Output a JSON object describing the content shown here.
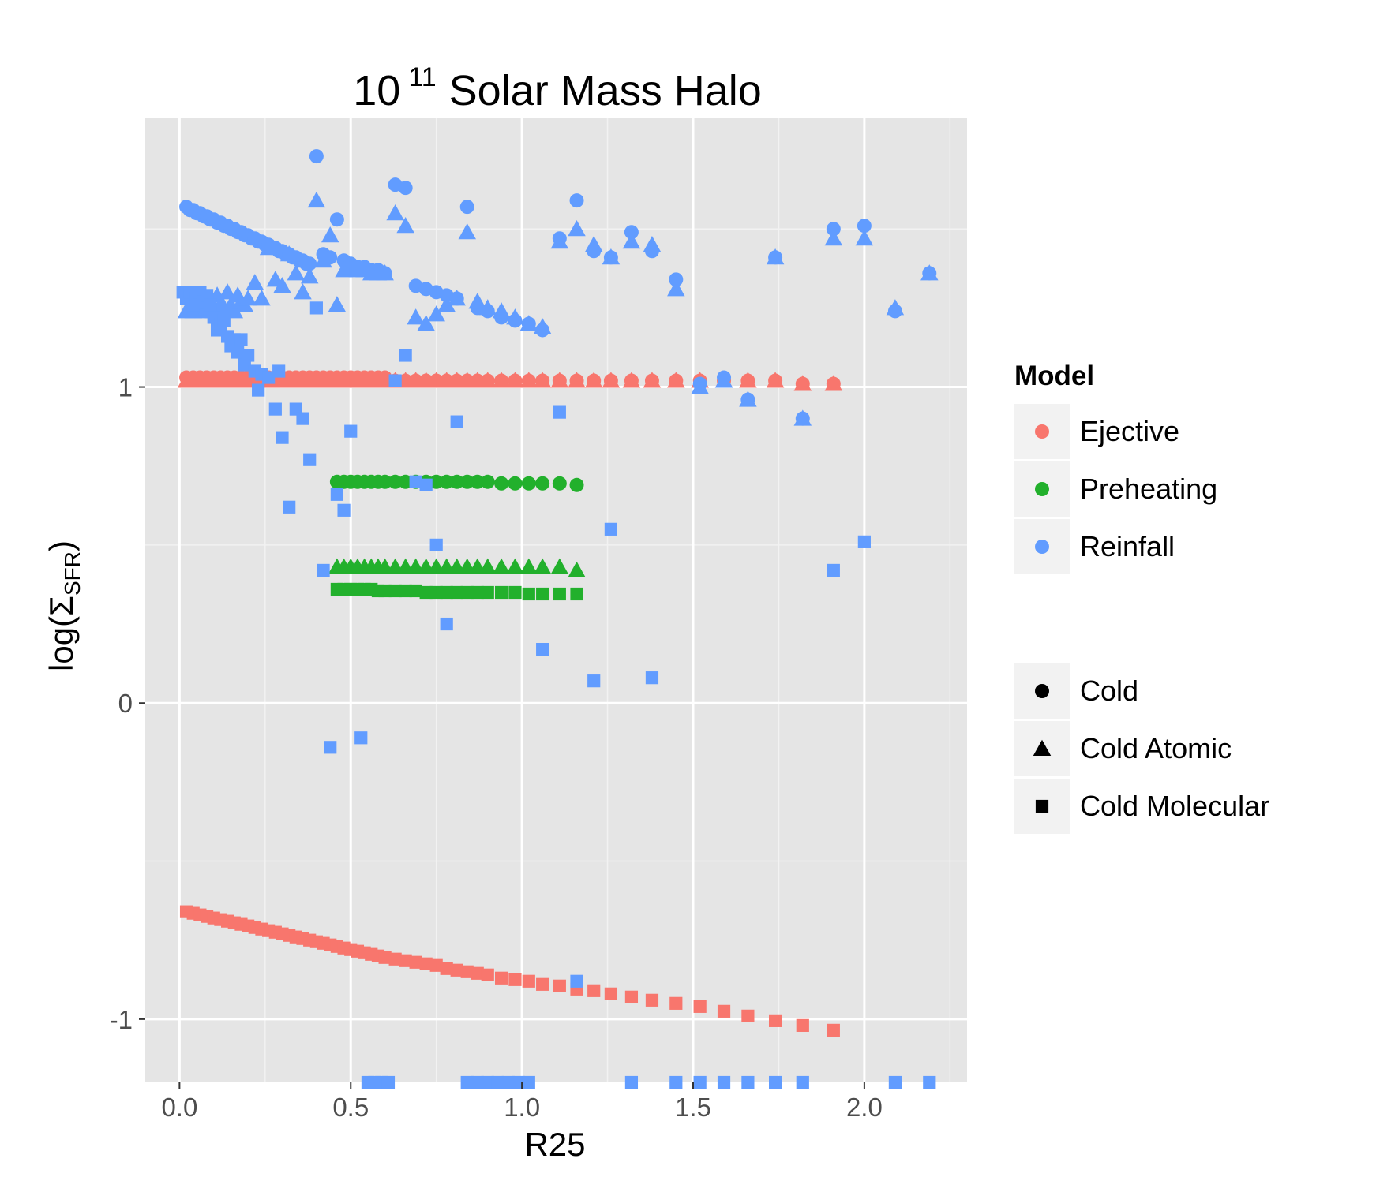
{
  "chart_data": {
    "type": "scatter",
    "title": "10 11 Solar Mass Halo",
    "title_parts": {
      "base": "10",
      "superscript": "11",
      "rest": "Solar Mass Halo"
    },
    "xlabel": "R25",
    "ylabel": "log(ΣSFR)",
    "ylabel_parts": {
      "prefix": "log(",
      "symbol": "Σ",
      "subscript": "SFR",
      "suffix": ")"
    },
    "xlim": [
      -0.1,
      2.3
    ],
    "ylim": [
      -1.2,
      1.85
    ],
    "x_ticks": [
      0.0,
      0.5,
      1.0,
      1.5,
      2.0
    ],
    "x_tick_labels": [
      "0.0",
      "0.5",
      "1.0",
      "1.5",
      "2.0"
    ],
    "y_ticks": [
      -1,
      0,
      1
    ],
    "y_tick_labels": [
      "-1",
      "0",
      "1"
    ],
    "grid": true,
    "panel_color": "#e5e5e5",
    "grid_color": "#ffffff",
    "legend_placement": "right",
    "legend_color": {
      "title": "Model",
      "entries": [
        {
          "label": "Ejective",
          "color": "#f8766d"
        },
        {
          "label": "Preheating",
          "color": "#22b02c"
        },
        {
          "label": "Reinfall",
          "color": "#619cff"
        }
      ]
    },
    "legend_shape": {
      "entries": [
        {
          "label": "Cold",
          "shape": "circle"
        },
        {
          "label": "Cold Atomic",
          "shape": "triangle"
        },
        {
          "label": "Cold Molecular",
          "shape": "square"
        }
      ]
    },
    "series": [
      {
        "model": "Ejective",
        "kind": "Cold",
        "color": "#f8766d",
        "shape": "circle",
        "x": [
          0.02,
          0.04,
          0.06,
          0.08,
          0.1,
          0.12,
          0.14,
          0.16,
          0.18,
          0.2,
          0.22,
          0.24,
          0.26,
          0.28,
          0.3,
          0.32,
          0.34,
          0.36,
          0.38,
          0.4,
          0.42,
          0.44,
          0.46,
          0.48,
          0.5,
          0.52,
          0.54,
          0.56,
          0.58,
          0.6,
          0.63,
          0.66,
          0.69,
          0.72,
          0.75,
          0.78,
          0.81,
          0.84,
          0.87,
          0.9,
          0.94,
          0.98,
          1.02,
          1.06,
          1.11,
          1.16,
          1.21,
          1.26,
          1.32,
          1.38,
          1.45,
          1.52,
          1.59,
          1.66,
          1.74,
          1.82,
          1.91
        ],
        "y": [
          1.03,
          1.03,
          1.03,
          1.03,
          1.03,
          1.03,
          1.03,
          1.03,
          1.03,
          1.03,
          1.03,
          1.03,
          1.03,
          1.03,
          1.03,
          1.03,
          1.03,
          1.03,
          1.03,
          1.03,
          1.03,
          1.03,
          1.03,
          1.03,
          1.03,
          1.03,
          1.03,
          1.03,
          1.03,
          1.03,
          1.02,
          1.02,
          1.02,
          1.02,
          1.02,
          1.02,
          1.02,
          1.02,
          1.02,
          1.02,
          1.02,
          1.02,
          1.02,
          1.02,
          1.02,
          1.02,
          1.02,
          1.02,
          1.02,
          1.02,
          1.02,
          1.02,
          1.02,
          1.02,
          1.02,
          1.01,
          1.01
        ]
      },
      {
        "model": "Ejective",
        "kind": "Cold Atomic",
        "color": "#f8766d",
        "shape": "triangle",
        "x": [
          0.02,
          0.04,
          0.06,
          0.08,
          0.1,
          0.12,
          0.14,
          0.16,
          0.18,
          0.2,
          0.22,
          0.24,
          0.26,
          0.28,
          0.3,
          0.32,
          0.34,
          0.36,
          0.38,
          0.4,
          0.42,
          0.44,
          0.46,
          0.48,
          0.5,
          0.52,
          0.54,
          0.56,
          0.58,
          0.6,
          0.63,
          0.66,
          0.69,
          0.72,
          0.75,
          0.78,
          0.81,
          0.84,
          0.87,
          0.9,
          0.94,
          0.98,
          1.02,
          1.06,
          1.11,
          1.16,
          1.21,
          1.26,
          1.32,
          1.38,
          1.45,
          1.52,
          1.59,
          1.66,
          1.74,
          1.82,
          1.91
        ],
        "y": [
          1.02,
          1.02,
          1.02,
          1.02,
          1.02,
          1.02,
          1.02,
          1.02,
          1.02,
          1.02,
          1.02,
          1.02,
          1.02,
          1.02,
          1.02,
          1.02,
          1.02,
          1.02,
          1.02,
          1.02,
          1.02,
          1.02,
          1.02,
          1.02,
          1.02,
          1.02,
          1.02,
          1.02,
          1.02,
          1.02,
          1.02,
          1.02,
          1.02,
          1.02,
          1.02,
          1.02,
          1.02,
          1.02,
          1.02,
          1.02,
          1.02,
          1.02,
          1.02,
          1.02,
          1.02,
          1.02,
          1.02,
          1.02,
          1.02,
          1.02,
          1.02,
          1.02,
          1.02,
          1.02,
          1.02,
          1.01,
          1.01
        ]
      },
      {
        "model": "Ejective",
        "kind": "Cold Molecular",
        "color": "#f8766d",
        "shape": "square",
        "x": [
          0.02,
          0.04,
          0.06,
          0.08,
          0.1,
          0.12,
          0.14,
          0.16,
          0.18,
          0.2,
          0.22,
          0.24,
          0.26,
          0.28,
          0.3,
          0.32,
          0.34,
          0.36,
          0.38,
          0.4,
          0.42,
          0.44,
          0.46,
          0.48,
          0.5,
          0.52,
          0.54,
          0.56,
          0.58,
          0.6,
          0.63,
          0.66,
          0.69,
          0.72,
          0.75,
          0.78,
          0.81,
          0.84,
          0.87,
          0.9,
          0.94,
          0.98,
          1.02,
          1.06,
          1.11,
          1.16,
          1.21,
          1.26,
          1.32,
          1.38,
          1.45,
          1.52,
          1.59,
          1.66,
          1.74,
          1.82,
          1.91
        ],
        "y": [
          -0.66,
          -0.665,
          -0.67,
          -0.675,
          -0.68,
          -0.685,
          -0.69,
          -0.695,
          -0.7,
          -0.705,
          -0.71,
          -0.715,
          -0.72,
          -0.725,
          -0.73,
          -0.735,
          -0.74,
          -0.745,
          -0.75,
          -0.755,
          -0.76,
          -0.765,
          -0.77,
          -0.775,
          -0.78,
          -0.785,
          -0.79,
          -0.795,
          -0.8,
          -0.805,
          -0.81,
          -0.815,
          -0.82,
          -0.825,
          -0.83,
          -0.84,
          -0.845,
          -0.85,
          -0.855,
          -0.86,
          -0.87,
          -0.875,
          -0.88,
          -0.89,
          -0.895,
          -0.905,
          -0.91,
          -0.92,
          -0.93,
          -0.94,
          -0.95,
          -0.96,
          -0.975,
          -0.99,
          -1.005,
          -1.02,
          -1.035
        ]
      },
      {
        "model": "Preheating",
        "kind": "Cold",
        "color": "#22b02c",
        "shape": "circle",
        "x": [
          0.46,
          0.48,
          0.5,
          0.52,
          0.54,
          0.56,
          0.58,
          0.6,
          0.63,
          0.66,
          0.69,
          0.72,
          0.75,
          0.78,
          0.81,
          0.84,
          0.87,
          0.9,
          0.94,
          0.98,
          1.02,
          1.06,
          1.11,
          1.16
        ],
        "y": [
          0.7,
          0.7,
          0.7,
          0.7,
          0.7,
          0.7,
          0.7,
          0.7,
          0.7,
          0.7,
          0.7,
          0.7,
          0.7,
          0.7,
          0.7,
          0.7,
          0.7,
          0.7,
          0.695,
          0.695,
          0.695,
          0.695,
          0.695,
          0.69
        ]
      },
      {
        "model": "Preheating",
        "kind": "Cold Atomic",
        "color": "#22b02c",
        "shape": "triangle",
        "x": [
          0.46,
          0.48,
          0.5,
          0.52,
          0.54,
          0.56,
          0.58,
          0.6,
          0.63,
          0.66,
          0.69,
          0.72,
          0.75,
          0.78,
          0.81,
          0.84,
          0.87,
          0.9,
          0.94,
          0.98,
          1.02,
          1.06,
          1.11,
          1.16
        ],
        "y": [
          0.43,
          0.43,
          0.43,
          0.43,
          0.43,
          0.43,
          0.43,
          0.43,
          0.43,
          0.43,
          0.43,
          0.43,
          0.43,
          0.43,
          0.43,
          0.43,
          0.43,
          0.43,
          0.43,
          0.43,
          0.43,
          0.43,
          0.43,
          0.42
        ]
      },
      {
        "model": "Preheating",
        "kind": "Cold Molecular",
        "color": "#22b02c",
        "shape": "square",
        "x": [
          0.46,
          0.48,
          0.5,
          0.52,
          0.54,
          0.56,
          0.58,
          0.6,
          0.63,
          0.66,
          0.69,
          0.72,
          0.75,
          0.78,
          0.81,
          0.84,
          0.87,
          0.9,
          0.94,
          0.98,
          1.02,
          1.06,
          1.11,
          1.16
        ],
        "y": [
          0.36,
          0.36,
          0.36,
          0.36,
          0.36,
          0.36,
          0.355,
          0.355,
          0.355,
          0.355,
          0.355,
          0.35,
          0.35,
          0.35,
          0.35,
          0.35,
          0.35,
          0.35,
          0.35,
          0.35,
          0.345,
          0.345,
          0.345,
          0.345
        ]
      },
      {
        "model": "Reinfall",
        "kind": "Cold",
        "color": "#619cff",
        "shape": "circle",
        "x": [
          0.02,
          0.03,
          0.04,
          0.05,
          0.06,
          0.07,
          0.08,
          0.09,
          0.1,
          0.11,
          0.12,
          0.13,
          0.14,
          0.15,
          0.16,
          0.17,
          0.18,
          0.19,
          0.2,
          0.21,
          0.22,
          0.23,
          0.24,
          0.25,
          0.26,
          0.27,
          0.28,
          0.29,
          0.3,
          0.31,
          0.32,
          0.33,
          0.34,
          0.35,
          0.36,
          0.37,
          0.38,
          0.4,
          0.42,
          0.44,
          0.46,
          0.48,
          0.5,
          0.52,
          0.54,
          0.56,
          0.58,
          0.6,
          0.63,
          0.66,
          0.69,
          0.72,
          0.75,
          0.78,
          0.81,
          0.84,
          0.87,
          0.9,
          0.94,
          0.98,
          1.02,
          1.06,
          1.11,
          1.16,
          1.21,
          1.26,
          1.32,
          1.38,
          1.45,
          1.52,
          1.59,
          1.66,
          1.74,
          1.82,
          1.91,
          2.0,
          2.09,
          2.19
        ],
        "y": [
          1.57,
          1.56,
          1.56,
          1.55,
          1.55,
          1.54,
          1.54,
          1.53,
          1.53,
          1.52,
          1.52,
          1.51,
          1.51,
          1.5,
          1.5,
          1.49,
          1.49,
          1.48,
          1.48,
          1.47,
          1.47,
          1.46,
          1.46,
          1.45,
          1.45,
          1.44,
          1.44,
          1.43,
          1.43,
          1.42,
          1.42,
          1.41,
          1.41,
          1.4,
          1.4,
          1.39,
          1.39,
          1.73,
          1.42,
          1.41,
          1.53,
          1.4,
          1.39,
          1.38,
          1.38,
          1.37,
          1.37,
          1.36,
          1.64,
          1.63,
          1.32,
          1.31,
          1.3,
          1.29,
          1.28,
          1.57,
          1.25,
          1.24,
          1.22,
          1.21,
          1.2,
          1.18,
          1.47,
          1.59,
          1.43,
          1.41,
          1.49,
          1.43,
          1.34,
          1.01,
          1.03,
          0.96,
          1.41,
          0.9,
          1.5,
          1.51,
          1.24,
          1.36
        ]
      },
      {
        "model": "Reinfall",
        "kind": "Cold Atomic",
        "color": "#619cff",
        "shape": "triangle",
        "x": [
          0.02,
          0.03,
          0.04,
          0.05,
          0.06,
          0.07,
          0.08,
          0.09,
          0.1,
          0.11,
          0.12,
          0.13,
          0.14,
          0.15,
          0.16,
          0.17,
          0.18,
          0.19,
          0.2,
          0.22,
          0.24,
          0.26,
          0.28,
          0.3,
          0.32,
          0.34,
          0.36,
          0.38,
          0.4,
          0.42,
          0.44,
          0.46,
          0.48,
          0.5,
          0.52,
          0.54,
          0.56,
          0.58,
          0.6,
          0.63,
          0.66,
          0.69,
          0.72,
          0.75,
          0.78,
          0.81,
          0.84,
          0.87,
          0.9,
          0.94,
          0.98,
          1.02,
          1.06,
          1.11,
          1.16,
          1.21,
          1.26,
          1.32,
          1.38,
          1.45,
          1.52,
          1.59,
          1.66,
          1.74,
          1.82,
          1.91,
          2.0,
          2.09,
          2.19
        ],
        "y": [
          1.24,
          1.26,
          1.24,
          1.28,
          1.26,
          1.24,
          1.25,
          1.27,
          1.24,
          1.29,
          1.26,
          1.25,
          1.3,
          1.26,
          1.24,
          1.29,
          1.27,
          1.26,
          1.28,
          1.33,
          1.28,
          1.44,
          1.34,
          1.32,
          1.42,
          1.36,
          1.3,
          1.35,
          1.59,
          1.4,
          1.48,
          1.26,
          1.37,
          1.38,
          1.37,
          1.37,
          1.36,
          1.36,
          1.36,
          1.55,
          1.51,
          1.22,
          1.2,
          1.23,
          1.26,
          1.28,
          1.49,
          1.27,
          1.25,
          1.24,
          1.22,
          1.2,
          1.19,
          1.46,
          1.5,
          1.45,
          1.41,
          1.46,
          1.45,
          1.31,
          1.0,
          1.02,
          0.96,
          1.41,
          0.9,
          1.47,
          1.47,
          1.25,
          1.36
        ]
      },
      {
        "model": "Reinfall",
        "kind": "Cold Molecular",
        "color": "#619cff",
        "shape": "square",
        "x": [
          0.01,
          0.02,
          0.03,
          0.04,
          0.05,
          0.06,
          0.07,
          0.08,
          0.09,
          0.1,
          0.11,
          0.12,
          0.13,
          0.14,
          0.15,
          0.16,
          0.17,
          0.18,
          0.19,
          0.2,
          0.22,
          0.23,
          0.24,
          0.26,
          0.28,
          0.29,
          0.3,
          0.32,
          0.34,
          0.36,
          0.38,
          0.4,
          0.42,
          0.44,
          0.46,
          0.48,
          0.5,
          0.53,
          0.55,
          0.57,
          0.59,
          0.61,
          0.63,
          0.66,
          0.69,
          0.72,
          0.75,
          0.78,
          0.81,
          0.84,
          0.87,
          0.9,
          0.93,
          0.96,
          0.99,
          1.02,
          1.06,
          1.11,
          1.16,
          1.21,
          1.26,
          1.32,
          1.38,
          1.45,
          1.52,
          1.59,
          1.66,
          1.74,
          1.82,
          1.91,
          2.0,
          2.09,
          2.19
        ],
        "y": [
          1.3,
          1.28,
          1.3,
          1.26,
          1.28,
          1.3,
          1.27,
          1.29,
          1.26,
          1.22,
          1.18,
          1.2,
          1.21,
          1.16,
          1.13,
          1.15,
          1.11,
          1.15,
          1.07,
          1.1,
          1.05,
          0.99,
          1.04,
          1.03,
          0.93,
          1.05,
          0.84,
          0.62,
          0.93,
          0.9,
          0.77,
          1.25,
          0.42,
          -0.14,
          0.66,
          0.61,
          0.86,
          -0.11,
          -1.2,
          -1.2,
          -1.2,
          -1.2,
          1.02,
          1.1,
          0.7,
          0.69,
          0.5,
          0.25,
          0.89,
          -1.2,
          -1.2,
          -1.2,
          -1.2,
          -1.2,
          -1.2,
          -1.2,
          0.17,
          0.92,
          -0.88,
          0.07,
          0.55,
          -1.2,
          0.08,
          -1.2,
          -1.2,
          -1.2,
          -1.2,
          -1.2,
          -1.2,
          0.42,
          0.51,
          -1.2,
          -1.2
        ]
      }
    ]
  }
}
